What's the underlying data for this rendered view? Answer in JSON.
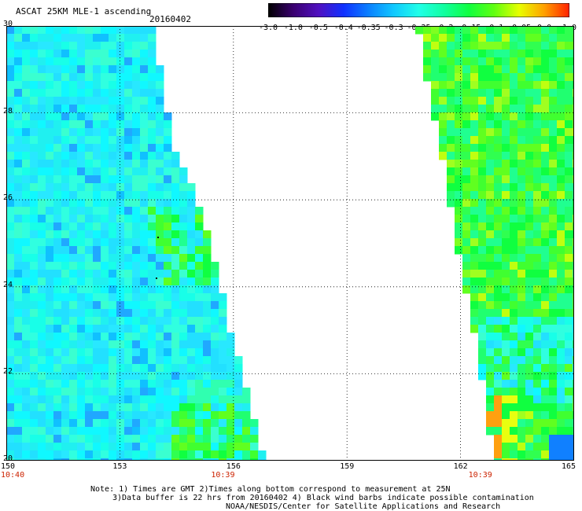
{
  "header": {
    "title": "ASCAT 25KM MLE-1 ascending",
    "date": "20160402"
  },
  "colorbar": {
    "labels": [
      "-3.0",
      "-1.0",
      "-0.5",
      "-0.4",
      "-0.35",
      "-0.3",
      "-0.25",
      "-0.2",
      "-0.15",
      "-0.1",
      "-0.05",
      "0.0",
      "1.0"
    ],
    "stops": [
      "#000000",
      "#3a0070",
      "#5010c0",
      "#1030ff",
      "#0a80ff",
      "#10c8ff",
      "#20ffe8",
      "#10ffa0",
      "#10ff40",
      "#60ff10",
      "#e8ff00",
      "#ffa000",
      "#ff2000"
    ]
  },
  "map": {
    "lon_labels": [
      "150",
      "153",
      "156",
      "159",
      "162",
      "165"
    ],
    "lon_values": [
      150,
      153,
      156,
      159,
      162,
      165
    ],
    "lat_labels": [
      "30",
      "28",
      "26",
      "24",
      "22",
      "20"
    ],
    "lat_values": [
      30,
      28,
      26,
      24,
      22,
      20
    ],
    "lon_range": [
      150,
      165
    ],
    "lat_range": [
      20,
      30
    ],
    "time_labels": [
      "10:40",
      "10:39",
      "10:39"
    ],
    "time_lons": [
      150,
      155.7,
      162.5
    ],
    "swath_left_edge": [
      [
        183,
        0
      ],
      [
        190,
        40
      ],
      [
        200,
        100
      ],
      [
        210,
        150
      ],
      [
        232,
        200
      ],
      [
        248,
        250
      ],
      [
        262,
        300
      ],
      [
        280,
        380
      ],
      [
        300,
        450
      ],
      [
        322,
        545
      ]
    ],
    "swath_right_edge": [
      [
        520,
        0
      ],
      [
        530,
        60
      ],
      [
        547,
        150
      ],
      [
        565,
        260
      ],
      [
        578,
        330
      ],
      [
        594,
        400
      ],
      [
        604,
        470
      ],
      [
        614,
        545
      ]
    ]
  },
  "notes": {
    "line1": "Note: 1) Times are GMT 2)Times along bottom correspond to measurement at 25N",
    "line2": "3)Data buffer is 22 hrs from 20160402 4) Black wind barbs indicate possible contamination",
    "line3": "NOAA/NESDIS/Center for Satellite Applications and Research"
  }
}
